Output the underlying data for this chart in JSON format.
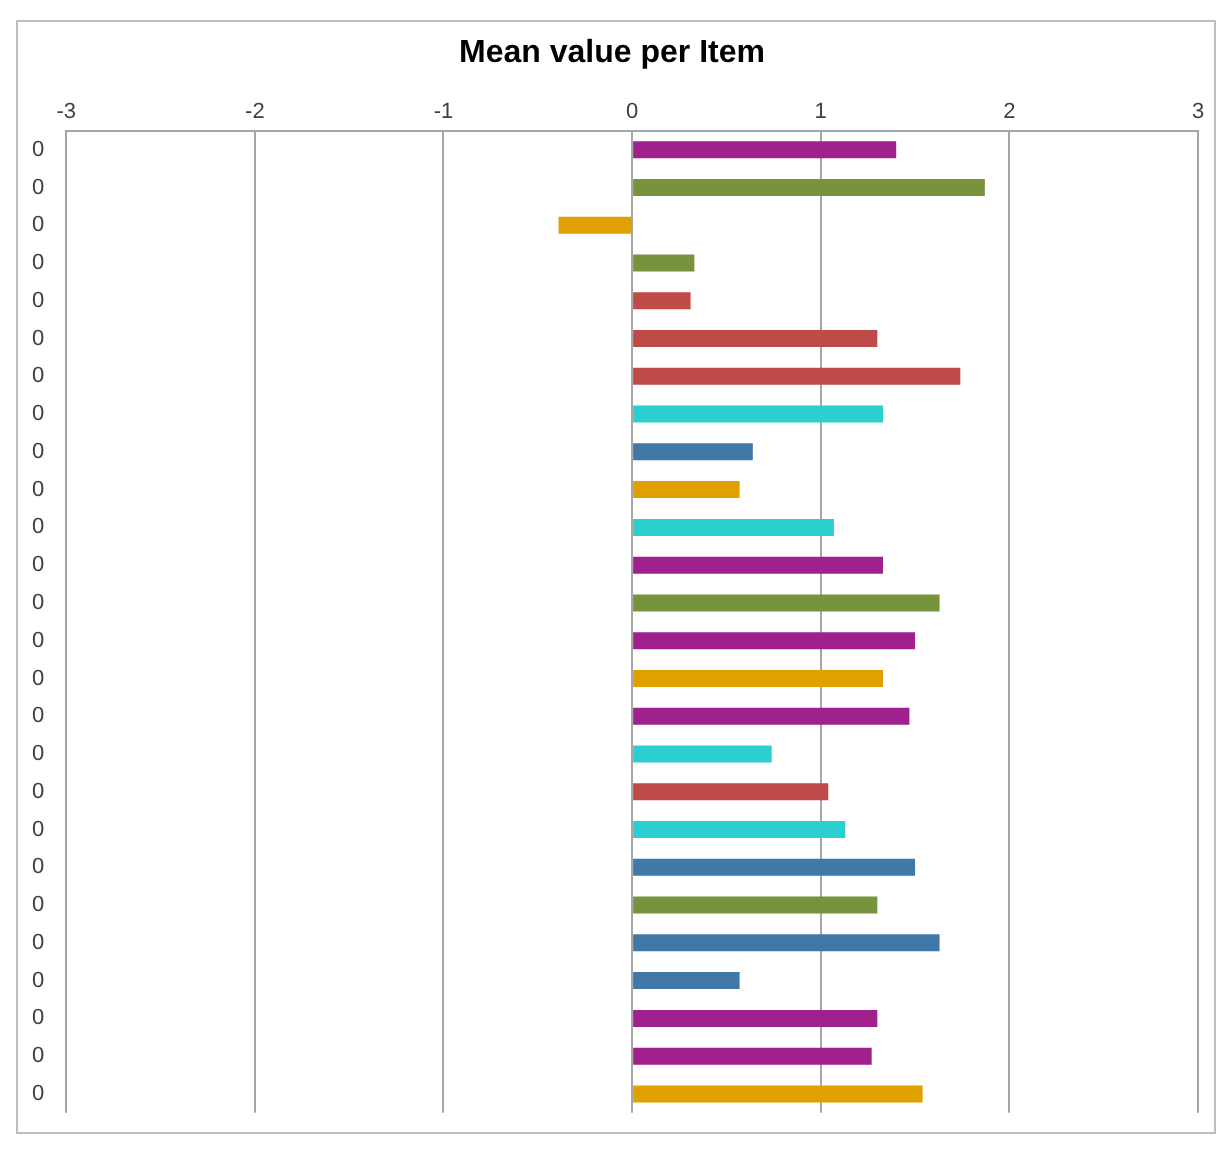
{
  "chart_data": {
    "type": "bar",
    "orientation": "horizontal",
    "title": "Mean value per Item",
    "categories": [
      "0",
      "0",
      "0",
      "0",
      "0",
      "0",
      "0",
      "0",
      "0",
      "0",
      "0",
      "0",
      "0",
      "0",
      "0",
      "0",
      "0",
      "0",
      "0",
      "0",
      "0",
      "0",
      "0",
      "0",
      "0",
      "0"
    ],
    "values": [
      1.4,
      1.87,
      -0.39,
      0.33,
      0.31,
      1.3,
      1.74,
      1.33,
      0.64,
      0.57,
      1.07,
      1.33,
      1.63,
      1.5,
      1.33,
      1.47,
      0.74,
      1.04,
      1.13,
      1.5,
      1.3,
      1.63,
      0.57,
      1.3,
      1.27,
      1.54
    ],
    "colors": [
      "#a0208e",
      "#77933c",
      "#e0a000",
      "#77933c",
      "#be4b48",
      "#be4b48",
      "#be4b48",
      "#2ccfcf",
      "#4079a8",
      "#e0a000",
      "#2ccfcf",
      "#a0208e",
      "#77933c",
      "#a0208e",
      "#e0a000",
      "#a0208e",
      "#2ccfcf",
      "#be4b48",
      "#2ccfcf",
      "#4079a8",
      "#77933c",
      "#4079a8",
      "#4079a8",
      "#a0208e",
      "#a0208e",
      "#e0a000"
    ],
    "xlim": [
      -3,
      3
    ],
    "xticks": [
      -3,
      -2,
      -1,
      0,
      1,
      2,
      3
    ],
    "grid": "x",
    "legend": false
  }
}
